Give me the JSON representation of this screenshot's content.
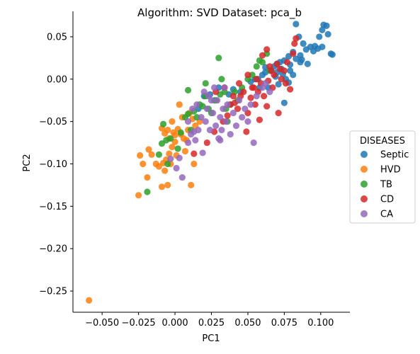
{
  "chart_data": {
    "type": "scatter",
    "title": "Algorithm: SVD  Dataset: pca_b",
    "xlabel": "PC1",
    "ylabel": "PC2",
    "xlim": [
      -0.07,
      0.12
    ],
    "ylim": [
      -0.275,
      0.08
    ],
    "xticks": [
      -0.05,
      -0.025,
      0.0,
      0.025,
      0.05,
      0.075,
      0.1
    ],
    "xtick_labels": [
      "−0.050",
      "−0.025",
      "0.000",
      "0.025",
      "0.050",
      "0.075",
      "0.100"
    ],
    "yticks": [
      0.05,
      0.0,
      -0.05,
      -0.1,
      -0.15,
      -0.2,
      -0.25
    ],
    "ytick_labels": [
      "0.05",
      "0.00",
      "−0.05",
      "−0.10",
      "−0.15",
      "−0.20",
      "−0.25"
    ],
    "grid": false,
    "legend": {
      "title": "DISEASES",
      "placement": "right"
    },
    "series": [
      {
        "name": "Septic",
        "color": "#1f77b4",
        "points": [
          [
            0.083,
            0.065
          ],
          [
            0.102,
            0.064
          ],
          [
            0.104,
            0.063
          ],
          [
            0.101,
            0.058
          ],
          [
            0.105,
            0.053
          ],
          [
            0.099,
            0.05
          ],
          [
            0.088,
            0.042
          ],
          [
            0.093,
            0.038
          ],
          [
            0.096,
            0.039
          ],
          [
            0.101,
            0.038
          ],
          [
            0.098,
            0.036
          ],
          [
            0.107,
            0.03
          ],
          [
            0.108,
            0.029
          ],
          [
            0.085,
            0.05
          ],
          [
            0.09,
            0.035
          ],
          [
            0.081,
            0.032
          ],
          [
            0.086,
            0.028
          ],
          [
            0.078,
            0.027
          ],
          [
            0.083,
            0.024
          ],
          [
            0.075,
            0.022
          ],
          [
            0.072,
            0.02
          ],
          [
            0.07,
            0.018
          ],
          [
            0.068,
            0.015
          ],
          [
            0.073,
            0.012
          ],
          [
            0.079,
            0.01
          ],
          [
            0.066,
            0.01
          ],
          [
            0.062,
            0.008
          ],
          [
            0.06,
            0.005
          ],
          [
            0.069,
            0.003
          ],
          [
            0.076,
            0.0
          ],
          [
            0.071,
            -0.006
          ],
          [
            0.078,
            -0.004
          ],
          [
            0.055,
            0.0
          ],
          [
            0.052,
            -0.003
          ],
          [
            0.058,
            -0.01
          ],
          [
            0.064,
            -0.01
          ],
          [
            0.045,
            -0.015
          ],
          [
            0.04,
            -0.012
          ],
          [
            0.037,
            -0.018
          ],
          [
            0.03,
            -0.01
          ],
          [
            0.024,
            -0.018
          ],
          [
            0.02,
            -0.02
          ],
          [
            0.016,
            -0.035
          ],
          [
            0.075,
            -0.028
          ],
          [
            0.086,
            0.02
          ],
          [
            0.091,
            0.018
          ],
          [
            0.079,
            0.017
          ],
          [
            0.081,
            0.005
          ],
          [
            0.07,
            0.008
          ],
          [
            0.074,
            0.006
          ],
          [
            0.062,
            0.014
          ],
          [
            0.057,
            0.0
          ],
          [
            0.087,
            0.023
          ],
          [
            0.095,
            0.033
          ]
        ]
      },
      {
        "name": "HVD",
        "color": "#ff7f0e",
        "points": [
          [
            -0.059,
            -0.261
          ],
          [
            -0.025,
            -0.137
          ],
          [
            -0.019,
            -0.116
          ],
          [
            -0.018,
            -0.083
          ],
          [
            -0.016,
            -0.089
          ],
          [
            -0.013,
            -0.1
          ],
          [
            -0.011,
            -0.103
          ],
          [
            -0.009,
            -0.127
          ],
          [
            -0.005,
            -0.125
          ],
          [
            -0.007,
            -0.108
          ],
          [
            -0.008,
            -0.099
          ],
          [
            -0.006,
            -0.095
          ],
          [
            -0.003,
            -0.1
          ],
          [
            -0.004,
            -0.088
          ],
          [
            -0.002,
            -0.08
          ],
          [
            0.0,
            -0.074
          ],
          [
            -0.004,
            -0.07
          ],
          [
            -0.007,
            -0.064
          ],
          [
            -0.005,
            -0.06
          ],
          [
            -0.001,
            -0.063
          ],
          [
            0.002,
            -0.059
          ],
          [
            0.004,
            -0.065
          ],
          [
            0.006,
            -0.07
          ],
          [
            0.008,
            -0.072
          ],
          [
            0.013,
            -0.1
          ],
          [
            0.011,
            -0.125
          ],
          [
            0.009,
            -0.06
          ],
          [
            0.01,
            -0.04
          ],
          [
            0.012,
            -0.047
          ],
          [
            0.005,
            -0.045
          ],
          [
            0.003,
            -0.03
          ],
          [
            -0.009,
            -0.058
          ],
          [
            0.014,
            -0.055
          ],
          [
            0.017,
            -0.05
          ],
          [
            -0.022,
            -0.1
          ],
          [
            -0.024,
            -0.09
          ],
          [
            0.007,
            -0.085
          ],
          [
            0.001,
            -0.09
          ],
          [
            -0.002,
            -0.05
          ],
          [
            0.0,
            -0.066
          ]
        ]
      },
      {
        "name": "TB",
        "color": "#2ca02c",
        "points": [
          [
            -0.019,
            -0.133
          ],
          [
            -0.011,
            -0.089
          ],
          [
            -0.009,
            -0.076
          ],
          [
            -0.008,
            -0.053
          ],
          [
            -0.006,
            -0.072
          ],
          [
            -0.003,
            -0.07
          ],
          [
            0.002,
            -0.082
          ],
          [
            0.004,
            -0.063
          ],
          [
            0.007,
            -0.045
          ],
          [
            0.009,
            -0.041
          ],
          [
            0.011,
            -0.06
          ],
          [
            0.013,
            -0.038
          ],
          [
            0.015,
            -0.045
          ],
          [
            0.017,
            -0.03
          ],
          [
            0.019,
            -0.032
          ],
          [
            0.021,
            -0.02
          ],
          [
            0.023,
            -0.035
          ],
          [
            0.025,
            -0.04
          ],
          [
            0.027,
            -0.025
          ],
          [
            0.03,
            0.025
          ],
          [
            0.031,
            -0.018
          ],
          [
            0.032,
            0.0
          ],
          [
            0.034,
            -0.015
          ],
          [
            0.036,
            -0.05
          ],
          [
            0.038,
            -0.03
          ],
          [
            0.041,
            -0.015
          ],
          [
            0.043,
            -0.025
          ],
          [
            0.046,
            -0.01
          ],
          [
            0.05,
            0.0
          ],
          [
            0.053,
            0.005
          ],
          [
            0.056,
            0.015
          ],
          [
            0.058,
            0.022
          ],
          [
            0.06,
            0.02
          ],
          [
            0.063,
            0.03
          ],
          [
            0.065,
            0.01
          ],
          [
            0.009,
            -0.013
          ],
          [
            0.021,
            -0.005
          ],
          [
            0.028,
            -0.025
          ],
          [
            0.035,
            -0.035
          ],
          [
            -0.005,
            -0.1
          ]
        ]
      },
      {
        "name": "CD",
        "color": "#d62728",
        "points": [
          [
            0.013,
            -0.088
          ],
          [
            0.022,
            -0.075
          ],
          [
            0.027,
            -0.062
          ],
          [
            0.033,
            -0.05
          ],
          [
            0.036,
            -0.043
          ],
          [
            0.038,
            -0.03
          ],
          [
            0.041,
            -0.028
          ],
          [
            0.043,
            -0.035
          ],
          [
            0.045,
            -0.02
          ],
          [
            0.047,
            -0.015
          ],
          [
            0.049,
            -0.062
          ],
          [
            0.05,
            -0.04
          ],
          [
            0.052,
            -0.022
          ],
          [
            0.054,
            -0.01
          ],
          [
            0.055,
            -0.03
          ],
          [
            0.057,
            -0.015
          ],
          [
            0.059,
            -0.005
          ],
          [
            0.061,
            -0.02
          ],
          [
            0.063,
            -0.032
          ],
          [
            0.064,
            -0.002
          ],
          [
            0.066,
            0.01
          ],
          [
            0.068,
            0.005
          ],
          [
            0.07,
            0.018
          ],
          [
            0.071,
            -0.04
          ],
          [
            0.073,
            0.0
          ],
          [
            0.075,
            0.01
          ],
          [
            0.076,
            -0.005
          ],
          [
            0.079,
            -0.012
          ],
          [
            0.081,
            0.03
          ],
          [
            0.082,
            0.042
          ],
          [
            0.083,
            0.048
          ],
          [
            0.063,
            0.035
          ],
          [
            0.06,
            0.028
          ],
          [
            0.058,
            -0.048
          ],
          [
            0.053,
            -0.01
          ],
          [
            0.044,
            -0.005
          ],
          [
            0.04,
            -0.02
          ],
          [
            0.034,
            -0.01
          ],
          [
            0.028,
            -0.015
          ],
          [
            0.065,
            0.015
          ],
          [
            0.067,
            -0.01
          ],
          [
            0.056,
            0.0
          ],
          [
            0.072,
            0.012
          ],
          [
            0.077,
            0.02
          ],
          [
            0.05,
            0.005
          ]
        ]
      },
      {
        "name": "CA",
        "color": "#9467bd",
        "points": [
          [
            -0.003,
            -0.094
          ],
          [
            0.001,
            -0.105
          ],
          [
            0.003,
            -0.093
          ],
          [
            0.005,
            -0.116
          ],
          [
            0.009,
            -0.075
          ],
          [
            0.011,
            -0.065
          ],
          [
            0.012,
            -0.035
          ],
          [
            0.014,
            -0.072
          ],
          [
            0.016,
            -0.06
          ],
          [
            0.018,
            -0.045
          ],
          [
            0.019,
            -0.087
          ],
          [
            0.021,
            -0.05
          ],
          [
            0.022,
            -0.035
          ],
          [
            0.023,
            -0.02
          ],
          [
            0.024,
            -0.06
          ],
          [
            0.026,
            -0.04
          ],
          [
            0.028,
            -0.055
          ],
          [
            0.029,
            -0.025
          ],
          [
            0.03,
            -0.07
          ],
          [
            0.031,
            -0.045
          ],
          [
            0.032,
            -0.06
          ],
          [
            0.033,
            -0.035
          ],
          [
            0.035,
            -0.05
          ],
          [
            0.036,
            -0.03
          ],
          [
            0.038,
            -0.065
          ],
          [
            0.04,
            -0.04
          ],
          [
            0.042,
            -0.055
          ],
          [
            0.044,
            -0.025
          ],
          [
            0.046,
            -0.045
          ],
          [
            0.048,
            -0.035
          ],
          [
            0.05,
            -0.05
          ],
          [
            0.052,
            -0.03
          ],
          [
            0.054,
            -0.075
          ],
          [
            0.056,
            -0.02
          ],
          [
            0.06,
            -0.01
          ],
          [
            0.062,
            -0.005
          ],
          [
            0.065,
            -0.015
          ],
          [
            0.02,
            -0.015
          ],
          [
            0.015,
            -0.03
          ],
          [
            0.027,
            -0.01
          ],
          [
            0.009,
            -0.05
          ],
          [
            0.013,
            -0.062
          ],
          [
            0.031,
            -0.072
          ],
          [
            0.025,
            -0.025
          ],
          [
            0.034,
            -0.01
          ]
        ]
      }
    ]
  }
}
